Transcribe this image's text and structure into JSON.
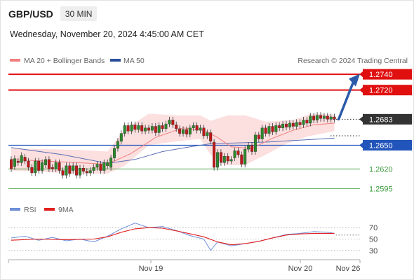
{
  "header": {
    "pair": "GBP/USD",
    "timeframe": "30 MIN",
    "datetime": "Wednesday, November 20, 2024 4:45:00 AM CET"
  },
  "legend": {
    "ma20_label": "MA 20 + Bollinger Bands",
    "ma50_label": "MA 50",
    "credit": "Research © 2024 Trading Central"
  },
  "rsi_legend": {
    "rsi_label": "RSI",
    "ma_label": "9MA"
  },
  "colors": {
    "resistance": "#e01010",
    "support_blue": "#2255bb",
    "support_green": "#3a9a3a",
    "bollinger_fill": "#fbd9d9",
    "ma20": "#f08080",
    "ma50": "#5a6fb5",
    "candle_up": "#2a8a2a",
    "candle_down": "#c01818",
    "arrow": "#2a5aa8",
    "rsi": "#6f8fd8",
    "rsi_ma": "#e02020",
    "current_badge": "#333333"
  },
  "chart_data": {
    "type": "candlestick",
    "x_tick_labels": [
      "Nov 19",
      "Nov 20",
      "Nov 26"
    ],
    "ylim": [
      1.2583,
      1.2749
    ],
    "levels": [
      {
        "label": "1.2740",
        "value": 1.274,
        "kind": "resistance"
      },
      {
        "label": "1.2720",
        "value": 1.272,
        "kind": "resistance"
      },
      {
        "label": "1.2683",
        "value": 1.2683,
        "kind": "current"
      },
      {
        "label": "1.2650",
        "value": 1.265,
        "kind": "support"
      },
      {
        "label": "1.2620",
        "value": 1.262,
        "kind": "support_minor"
      },
      {
        "label": "1.2595",
        "value": 1.2595,
        "kind": "support_minor"
      }
    ],
    "projection": {
      "from": 1.2683,
      "to": 1.2737
    },
    "candles": [
      [
        1.2632,
        1.262
      ],
      [
        1.2623,
        1.2633
      ],
      [
        1.263,
        1.2628
      ],
      [
        1.2628,
        1.2637
      ],
      [
        1.2635,
        1.263
      ],
      [
        1.263,
        1.2622
      ],
      [
        1.2622,
        1.2615
      ],
      [
        1.2615,
        1.263
      ],
      [
        1.263,
        1.2618
      ],
      [
        1.2618,
        1.2628
      ],
      [
        1.2625,
        1.2632
      ],
      [
        1.2632,
        1.262
      ],
      [
        1.2622,
        1.262
      ],
      [
        1.262,
        1.2628
      ],
      [
        1.2628,
        1.2618
      ],
      [
        1.2618,
        1.2612
      ],
      [
        1.2612,
        1.2624
      ],
      [
        1.2624,
        1.2614
      ],
      [
        1.2618,
        1.2624
      ],
      [
        1.2624,
        1.2612
      ],
      [
        1.2612,
        1.2621
      ],
      [
        1.2621,
        1.2617
      ],
      [
        1.2617,
        1.2615
      ],
      [
        1.2615,
        1.2618
      ],
      [
        1.2618,
        1.2622
      ],
      [
        1.2622,
        1.2626
      ],
      [
        1.2626,
        1.2618
      ],
      [
        1.2618,
        1.2628
      ],
      [
        1.2624,
        1.2628
      ],
      [
        1.2622,
        1.2634
      ],
      [
        1.2634,
        1.2646
      ],
      [
        1.2646,
        1.2655
      ],
      [
        1.2655,
        1.2665
      ],
      [
        1.2665,
        1.2675
      ],
      [
        1.2675,
        1.2668
      ],
      [
        1.2668,
        1.2676
      ],
      [
        1.2676,
        1.267
      ],
      [
        1.267,
        1.2675
      ],
      [
        1.2675,
        1.2668
      ],
      [
        1.2668,
        1.2672
      ],
      [
        1.2672,
        1.2669
      ],
      [
        1.2669,
        1.2674
      ],
      [
        1.2674,
        1.2666
      ],
      [
        1.2666,
        1.2675
      ],
      [
        1.2675,
        1.2671
      ],
      [
        1.2671,
        1.2677
      ],
      [
        1.2677,
        1.2682
      ],
      [
        1.2682,
        1.2676
      ],
      [
        1.2676,
        1.2671
      ],
      [
        1.2671,
        1.2665
      ],
      [
        1.2665,
        1.267
      ],
      [
        1.267,
        1.2664
      ],
      [
        1.2664,
        1.2672
      ],
      [
        1.2672,
        1.2675
      ],
      [
        1.2675,
        1.2669
      ],
      [
        1.2669,
        1.2672
      ],
      [
        1.2672,
        1.2662
      ],
      [
        1.2662,
        1.2666
      ],
      [
        1.2666,
        1.2655
      ],
      [
        1.2654,
        1.2622
      ],
      [
        1.2622,
        1.2641
      ],
      [
        1.2641,
        1.2628
      ],
      [
        1.2628,
        1.2636
      ],
      [
        1.2636,
        1.263
      ],
      [
        1.263,
        1.2632
      ],
      [
        1.2634,
        1.2643
      ],
      [
        1.2643,
        1.2638
      ],
      [
        1.2638,
        1.2626
      ],
      [
        1.2626,
        1.2645
      ],
      [
        1.2645,
        1.265
      ],
      [
        1.265,
        1.2642
      ],
      [
        1.2642,
        1.2663
      ],
      [
        1.2663,
        1.2658
      ],
      [
        1.2658,
        1.2672
      ],
      [
        1.2672,
        1.2665
      ],
      [
        1.2665,
        1.2674
      ],
      [
        1.2674,
        1.2667
      ],
      [
        1.2667,
        1.2675
      ],
      [
        1.2675,
        1.2672
      ],
      [
        1.2672,
        1.2677
      ],
      [
        1.2677,
        1.2673
      ],
      [
        1.2673,
        1.2678
      ],
      [
        1.2678,
        1.2674
      ],
      [
        1.2674,
        1.2679
      ],
      [
        1.2679,
        1.2676
      ],
      [
        1.2676,
        1.2682
      ],
      [
        1.2682,
        1.2678
      ],
      [
        1.2678,
        1.2687
      ],
      [
        1.2687,
        1.2682
      ],
      [
        1.2682,
        1.2688
      ],
      [
        1.2688,
        1.2684
      ],
      [
        1.2684,
        1.2687
      ],
      [
        1.2687,
        1.2683
      ],
      [
        1.2683,
        1.2686
      ],
      [
        1.2686,
        1.2683
      ]
    ],
    "bollinger": {
      "upper": [
        [
          0,
          1.2646
        ],
        [
          20,
          1.2644
        ],
        [
          28,
          1.2642
        ],
        [
          33,
          1.267
        ],
        [
          40,
          1.269
        ],
        [
          48,
          1.2688
        ],
        [
          55,
          1.2688
        ],
        [
          58,
          1.2681
        ],
        [
          63,
          1.2688
        ],
        [
          68,
          1.2688
        ],
        [
          74,
          1.268
        ],
        [
          82,
          1.2682
        ],
        [
          87,
          1.269
        ],
        [
          94,
          1.2689
        ]
      ],
      "lower": [
        [
          0,
          1.2618
        ],
        [
          20,
          1.2614
        ],
        [
          28,
          1.2614
        ],
        [
          33,
          1.2624
        ],
        [
          40,
          1.265
        ],
        [
          48,
          1.2655
        ],
        [
          55,
          1.2658
        ],
        [
          58,
          1.2638
        ],
        [
          62,
          1.2625
        ],
        [
          68,
          1.2625
        ],
        [
          74,
          1.2638
        ],
        [
          80,
          1.2652
        ],
        [
          86,
          1.2661
        ],
        [
          94,
          1.2668
        ]
      ]
    },
    "ma20": [
      [
        0,
        1.2632
      ],
      [
        15,
        1.2629
      ],
      [
        28,
        1.2626
      ],
      [
        35,
        1.264
      ],
      [
        42,
        1.266
      ],
      [
        50,
        1.2672
      ],
      [
        56,
        1.2669
      ],
      [
        60,
        1.266
      ],
      [
        64,
        1.2648
      ],
      [
        70,
        1.2646
      ],
      [
        76,
        1.2659
      ],
      [
        82,
        1.2669
      ],
      [
        88,
        1.2676
      ],
      [
        94,
        1.2678
      ]
    ],
    "ma50": [
      [
        0,
        1.2647
      ],
      [
        15,
        1.2638
      ],
      [
        28,
        1.2627
      ],
      [
        36,
        1.2632
      ],
      [
        44,
        1.2642
      ],
      [
        52,
        1.2648
      ],
      [
        58,
        1.2652
      ],
      [
        66,
        1.2653
      ],
      [
        74,
        1.2654
      ],
      [
        82,
        1.2656
      ],
      [
        90,
        1.2658
      ],
      [
        94,
        1.2659
      ]
    ]
  },
  "rsi_data": {
    "ticks": [
      "70",
      "50",
      "30"
    ],
    "ylim": [
      20,
      85
    ],
    "rsi": [
      [
        0,
        52
      ],
      [
        4,
        55
      ],
      [
        8,
        48
      ],
      [
        12,
        53
      ],
      [
        16,
        47
      ],
      [
        20,
        50
      ],
      [
        24,
        45
      ],
      [
        28,
        55
      ],
      [
        32,
        68
      ],
      [
        36,
        78
      ],
      [
        40,
        70
      ],
      [
        44,
        72
      ],
      [
        48,
        65
      ],
      [
        52,
        56
      ],
      [
        56,
        50
      ],
      [
        58,
        30
      ],
      [
        60,
        45
      ],
      [
        64,
        38
      ],
      [
        68,
        42
      ],
      [
        72,
        46
      ],
      [
        76,
        52
      ],
      [
        80,
        58
      ],
      [
        84,
        60
      ],
      [
        88,
        63
      ],
      [
        92,
        62
      ],
      [
        94,
        60
      ]
    ],
    "ma": [
      [
        0,
        48
      ],
      [
        8,
        50
      ],
      [
        16,
        49
      ],
      [
        24,
        50
      ],
      [
        28,
        54
      ],
      [
        32,
        62
      ],
      [
        36,
        68
      ],
      [
        40,
        70
      ],
      [
        44,
        69
      ],
      [
        50,
        62
      ],
      [
        56,
        54
      ],
      [
        60,
        45
      ],
      [
        64,
        40
      ],
      [
        68,
        42
      ],
      [
        72,
        46
      ],
      [
        76,
        52
      ],
      [
        80,
        57
      ],
      [
        84,
        59
      ],
      [
        88,
        60
      ],
      [
        94,
        60
      ]
    ]
  }
}
